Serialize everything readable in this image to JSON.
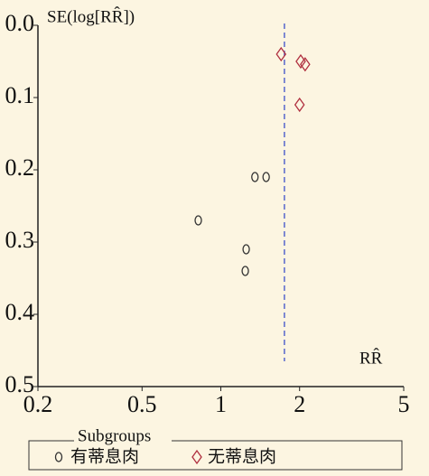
{
  "chart_data": {
    "type": "scatter",
    "y_label": "SE(log[RR̂])",
    "x_label": "RR̂",
    "xscale": "log",
    "y_inverted": true,
    "xlim": [
      0.2,
      5
    ],
    "xticks": [
      0.2,
      0.5,
      1,
      2,
      5
    ],
    "ylim": [
      0,
      0.5
    ],
    "yticks": [
      {
        "value": 0,
        "label": "0.0"
      },
      0.1,
      0.2,
      0.3,
      0.4,
      0.5
    ],
    "reference_line": 1.75,
    "reference_color": "#5566cc",
    "legend_title": "Subgroups",
    "series": [
      {
        "name": "有蒂息肉",
        "color": "#333333",
        "marker": "circle",
        "x": [
          1.35,
          1.49,
          0.82,
          1.25,
          1.24
        ],
        "values": [
          0.21,
          0.21,
          0.27,
          0.31,
          0.34
        ]
      },
      {
        "name": "无蒂息肉",
        "color": "#b03040",
        "marker": "diamond",
        "x": [
          1.7,
          2.02,
          2.1,
          2.0
        ],
        "values": [
          0.04,
          0.05,
          0.054,
          0.11
        ]
      }
    ]
  }
}
